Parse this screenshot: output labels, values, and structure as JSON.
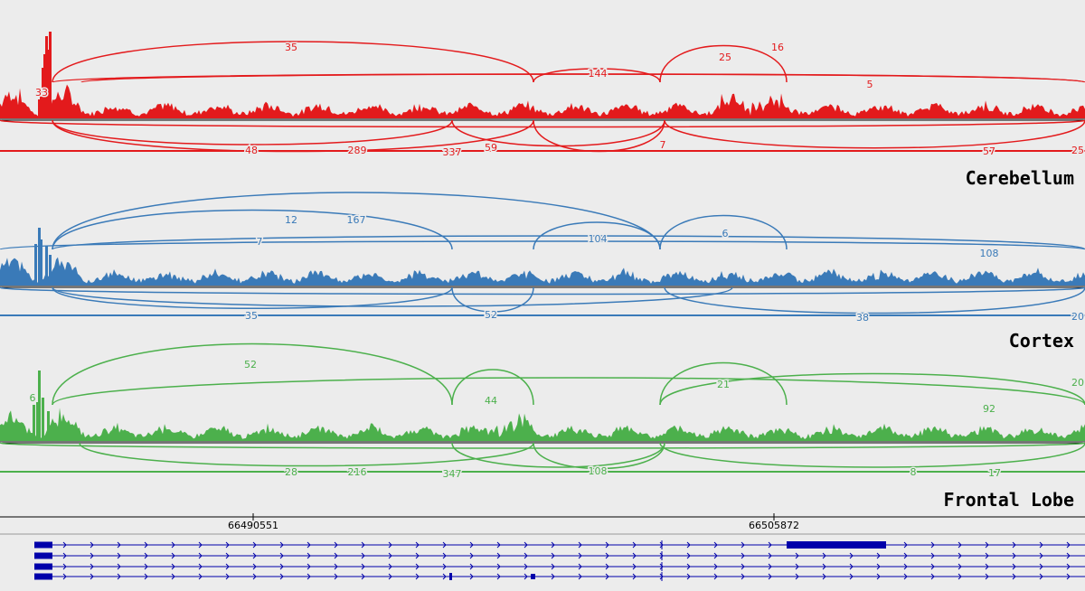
{
  "chart_data": {
    "type": "area",
    "title": "",
    "coordinate_axis": {
      "ticks": [
        "66490551",
        "66505872"
      ]
    },
    "tracks": [
      {
        "name": "Cerebellum",
        "color": "#e31a1c",
        "junction_labels": [
          "35",
          "16",
          "33",
          "144",
          "25",
          "5",
          "48",
          "289",
          "337",
          "59",
          "7",
          "57",
          "25"
        ]
      },
      {
        "name": "Cortex",
        "color": "#3a7ab8",
        "junction_labels": [
          "12",
          "167",
          "7",
          "104",
          "6",
          "108",
          "35",
          "52",
          "38",
          "20"
        ]
      },
      {
        "name": "Frontal Lobe",
        "color": "#4cb04c",
        "junction_labels": [
          "52",
          "6",
          "44",
          "21",
          "20",
          "92",
          "28",
          "216",
          "347",
          "108",
          "8",
          "17"
        ]
      }
    ],
    "transcripts": {
      "count": 4,
      "color": "#0000aa"
    }
  }
}
